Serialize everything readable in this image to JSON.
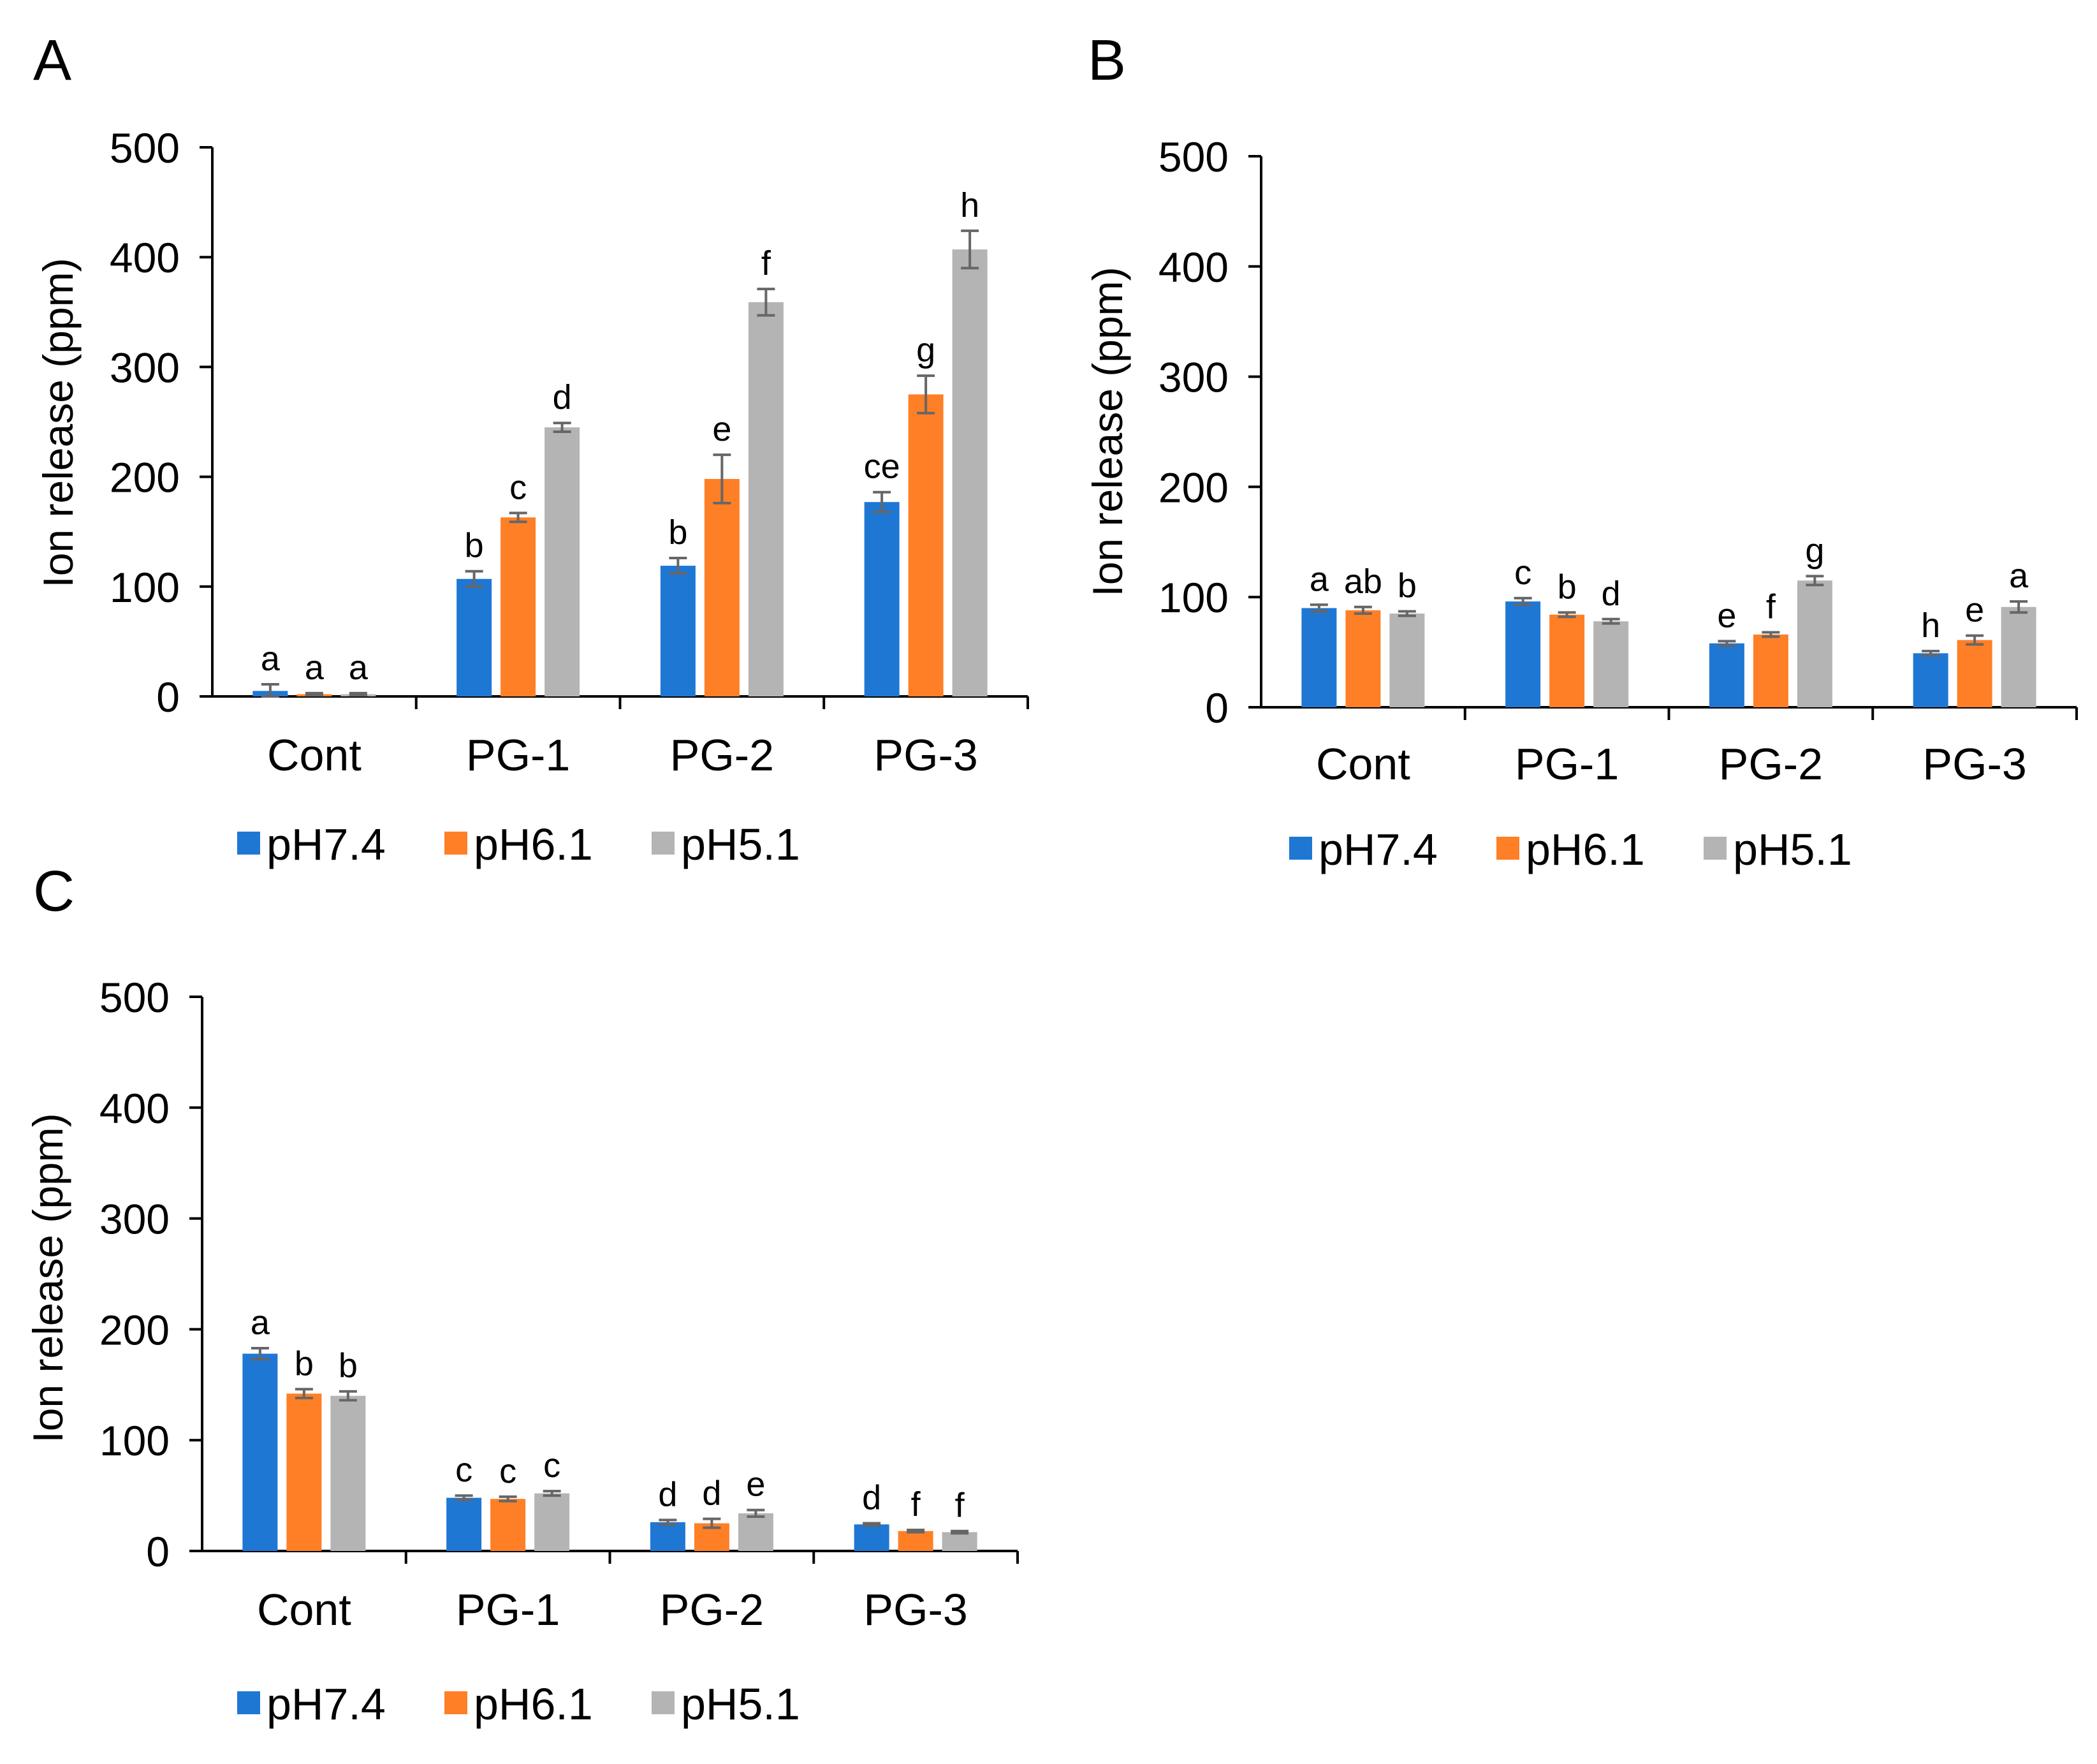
{
  "figure": {
    "background": "#ffffff",
    "colors": {
      "pH7.4": "#1f77d4",
      "pH6.1": "#ff7f27",
      "pH5.1": "#b4b4b4",
      "error_bar": "#666666",
      "axis": "#000000"
    }
  },
  "chart_data": [
    {
      "panel": "A",
      "type": "bar",
      "ylabel": "Ion release (ppm)",
      "ylim": [
        0,
        500
      ],
      "yticks": [
        "0",
        "100",
        "200",
        "300",
        "400",
        "500"
      ],
      "categories": [
        "Cont",
        "PG-1",
        "PG-2",
        "PG-3"
      ],
      "legend_position": "bottom",
      "series": [
        {
          "name": "pH7.4",
          "values": [
            5,
            107,
            119,
            177
          ],
          "errors": [
            6,
            7,
            7,
            9
          ],
          "labels": [
            "a",
            "b",
            "b",
            "ce"
          ]
        },
        {
          "name": "pH6.1",
          "values": [
            2,
            163,
            198,
            275
          ],
          "errors": [
            1,
            4,
            22,
            17
          ],
          "labels": [
            "a",
            "c",
            "e",
            "g"
          ]
        },
        {
          "name": "pH5.1",
          "values": [
            2,
            245,
            359,
            407
          ],
          "errors": [
            1,
            4,
            12,
            17
          ],
          "labels": [
            "a",
            "d",
            "f",
            "h"
          ]
        }
      ]
    },
    {
      "panel": "B",
      "type": "bar",
      "ylabel": "Ion release (ppm)",
      "ylim": [
        0,
        500
      ],
      "yticks": [
        "0",
        "100",
        "200",
        "300",
        "400",
        "500"
      ],
      "categories": [
        "Cont",
        "PG-1",
        "PG-2",
        "PG-3"
      ],
      "legend_position": "bottom",
      "series": [
        {
          "name": "pH7.4",
          "values": [
            90,
            96,
            58,
            49
          ],
          "errors": [
            3,
            3,
            2,
            2
          ],
          "labels": [
            "a",
            "c",
            "e",
            "h"
          ]
        },
        {
          "name": "pH6.1",
          "values": [
            88,
            84,
            66,
            61
          ],
          "errors": [
            3,
            2,
            2,
            4
          ],
          "labels": [
            "ab",
            "b",
            "f",
            "e"
          ]
        },
        {
          "name": "pH5.1",
          "values": [
            85,
            78,
            115,
            91
          ],
          "errors": [
            2,
            2,
            4,
            5
          ],
          "labels": [
            "b",
            "d",
            "g",
            "a"
          ]
        }
      ]
    },
    {
      "panel": "C",
      "type": "bar",
      "ylabel": "Ion release (ppm)",
      "ylim": [
        0,
        500
      ],
      "yticks": [
        "0",
        "100",
        "200",
        "300",
        "400",
        "500"
      ],
      "categories": [
        "Cont",
        "PG-1",
        "PG-2",
        "PG-3"
      ],
      "legend_position": "bottom",
      "series": [
        {
          "name": "pH7.4",
          "values": [
            178,
            48,
            26,
            24
          ],
          "errors": [
            5,
            2,
            2,
            1
          ],
          "labels": [
            "a",
            "c",
            "d",
            "d"
          ]
        },
        {
          "name": "pH6.1",
          "values": [
            142,
            47,
            25,
            18
          ],
          "errors": [
            4,
            2,
            4,
            1
          ],
          "labels": [
            "b",
            "c",
            "d",
            "f"
          ]
        },
        {
          "name": "pH5.1",
          "values": [
            140,
            52,
            34,
            17
          ],
          "errors": [
            4,
            2,
            3,
            1
          ],
          "labels": [
            "b",
            "c",
            "e",
            "f"
          ]
        }
      ]
    }
  ]
}
